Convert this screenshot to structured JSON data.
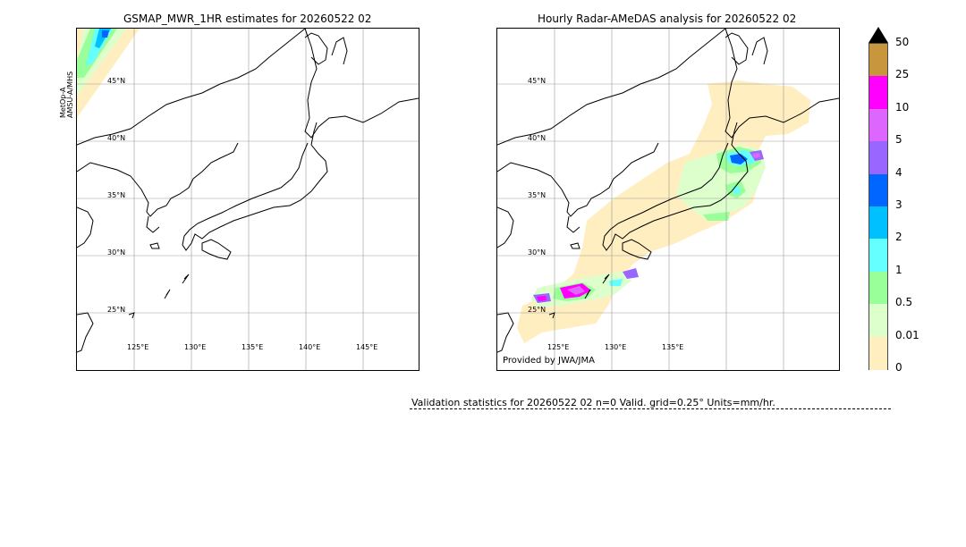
{
  "left_panel": {
    "title": "GSMAP_MWR_1HR estimates for 20260522 02",
    "side_label_1": "MetOp-A",
    "side_label_2": "AMSU-A/MHS",
    "lat_labels": [
      "45°N",
      "40°N",
      "35°N",
      "30°N",
      "25°N"
    ],
    "lon_labels": [
      "125°E",
      "130°E",
      "135°E",
      "140°E",
      "145°E"
    ]
  },
  "right_panel": {
    "title": "Hourly Radar-AMeDAS analysis for 20260522 02",
    "lat_labels": [
      "45°N",
      "40°N",
      "35°N",
      "30°N",
      "25°N"
    ],
    "lon_labels": [
      "125°E",
      "130°E",
      "135°E"
    ],
    "credit": "Provided by JWA/JMA"
  },
  "colorbar": {
    "ticks": [
      "50",
      "25",
      "10",
      "5",
      "4",
      "3",
      "2",
      "1",
      "0.5",
      "0.01",
      "0"
    ],
    "colors": [
      "#c8963c",
      "#ff00ff",
      "#dd66ff",
      "#9966ff",
      "#0066ff",
      "#00c0ff",
      "#66ffff",
      "#99ff99",
      "#ddffcc",
      "#ffeec0"
    ],
    "extend_color": "#000000"
  },
  "stats": {
    "text": "Validation statistics for 20260522 02  n=0 Valid. grid=0.25° Units=mm/hr."
  }
}
